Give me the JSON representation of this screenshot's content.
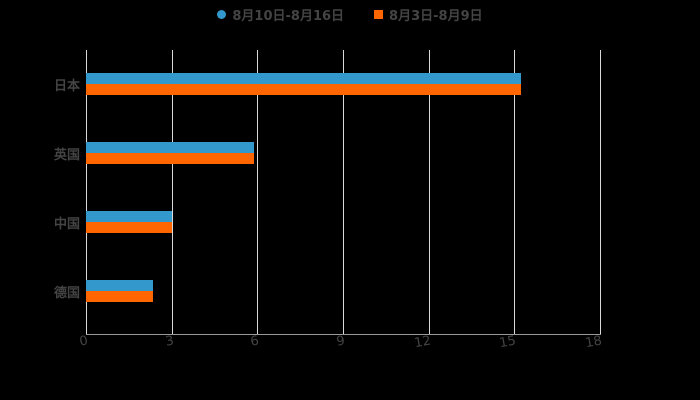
{
  "chart_data": {
    "type": "bar",
    "orientation": "horizontal",
    "title": "",
    "categories": [
      "日本",
      "英国",
      "中国",
      "德国"
    ],
    "series": [
      {
        "name": "8月10日-8月16日",
        "color": "#3399cc",
        "values": [
          15.25,
          5.9,
          3.0,
          2.35
        ]
      },
      {
        "name": "8月3日-8月9日",
        "color": "#ff6600",
        "values": [
          15.25,
          5.9,
          3.0,
          2.35
        ]
      }
    ],
    "xlabel": "",
    "ylabel": "",
    "xlim": [
      0,
      18
    ],
    "xticks": [
      "0",
      "3",
      "6",
      "9",
      "12",
      "15",
      "18"
    ],
    "grid": true,
    "legend_position": "top"
  },
  "legend": {
    "items": [
      {
        "label": "8月10日-8月16日",
        "color": "#3399cc",
        "marker": "circle"
      },
      {
        "label": "8月3日-8月9日",
        "color": "#ff6600",
        "marker": "square"
      }
    ]
  },
  "axis": {
    "y_labels": [
      "日本",
      "英国",
      "中国",
      "德国"
    ],
    "x_labels": [
      "0",
      "3",
      "6",
      "9",
      "12",
      "15",
      "18"
    ]
  }
}
